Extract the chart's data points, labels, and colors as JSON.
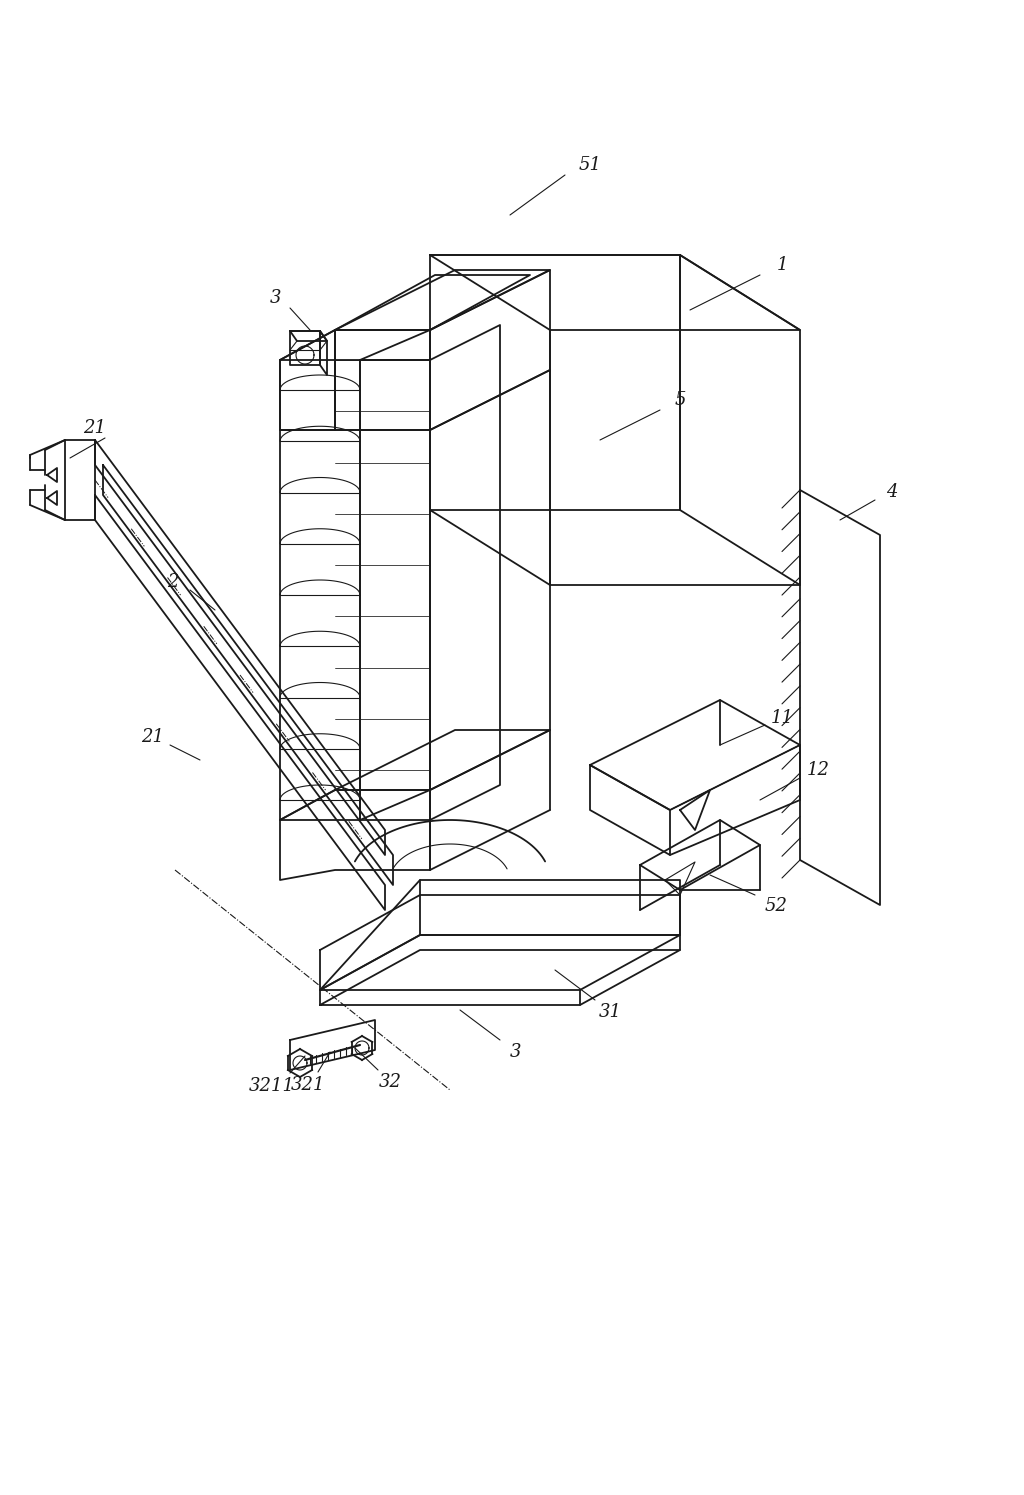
{
  "bg_color": "#ffffff",
  "line_color": "#1a1a1a",
  "lw_main": 1.3,
  "lw_thin": 0.8,
  "lw_hatch": 0.7,
  "fig_width": 10.24,
  "fig_height": 14.95,
  "dpi": 100
}
